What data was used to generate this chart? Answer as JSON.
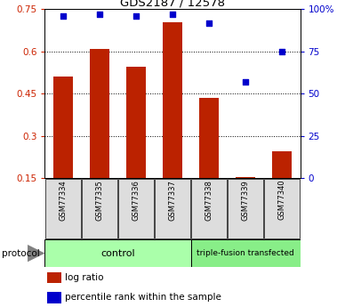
{
  "title": "GDS2187 / 12578",
  "samples": [
    "GSM77334",
    "GSM77335",
    "GSM77336",
    "GSM77337",
    "GSM77338",
    "GSM77339",
    "GSM77340"
  ],
  "log_ratio": [
    0.51,
    0.61,
    0.545,
    0.705,
    0.435,
    0.155,
    0.245
  ],
  "percentile_rank": [
    96,
    97,
    96,
    97,
    92,
    57,
    75
  ],
  "ylim_left": [
    0.15,
    0.75
  ],
  "ylim_right": [
    0,
    100
  ],
  "yticks_left": [
    0.15,
    0.3,
    0.45,
    0.6,
    0.75
  ],
  "yticks_right": [
    0,
    25,
    50,
    75,
    100
  ],
  "ytick_labels_left": [
    "0.15",
    "0.3",
    "0.45",
    "0.6",
    "0.75"
  ],
  "ytick_labels_right": [
    "0",
    "25",
    "50",
    "75",
    "100%"
  ],
  "bar_color": "#bb2200",
  "dot_color": "#0000cc",
  "bar_bottom": 0.15,
  "control_color": "#aaffaa",
  "triple_color": "#88ee88",
  "tick_label_color_left": "#cc2200",
  "tick_label_color_right": "#0000cc",
  "legend_log_ratio": "log ratio",
  "legend_percentile": "percentile rank within the sample",
  "protocol_label": "protocol",
  "control_label": "control",
  "triple_label": "triple-fusion transfected"
}
